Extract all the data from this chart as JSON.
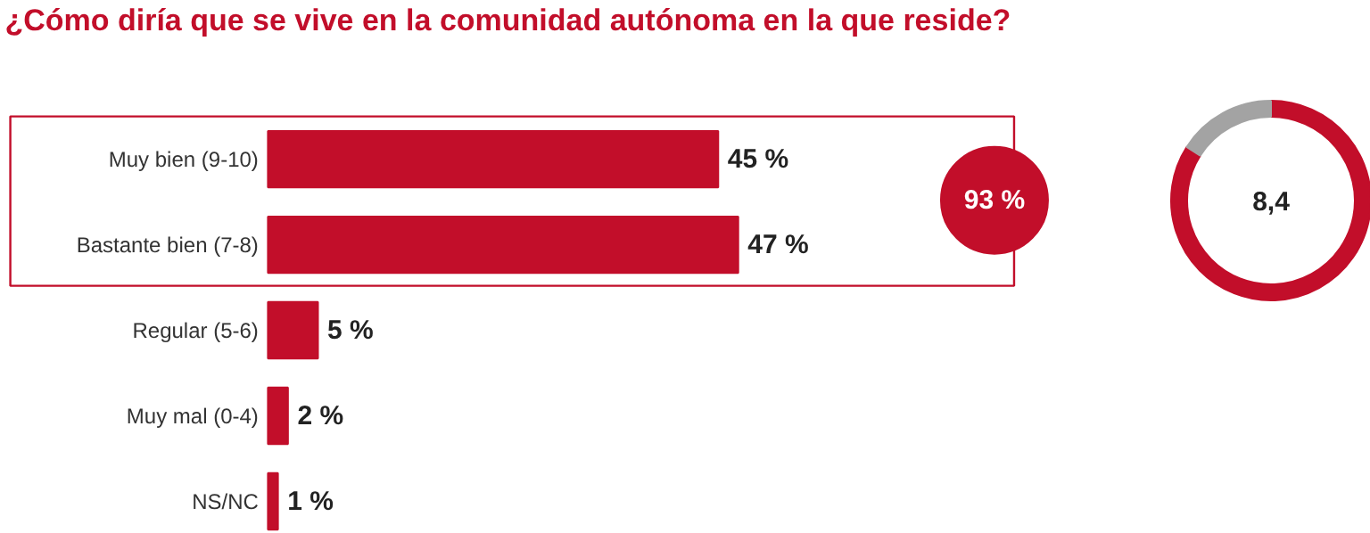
{
  "chart_data": [
    {
      "type": "bar",
      "orientation": "horizontal",
      "title": "¿Cómo diría que se vive en la comunidad autónoma en la que reside?",
      "categories": [
        "Muy bien (9-10)",
        "Bastante bien (7-8)",
        "Regular (5-6)",
        "Muy mal (0-4)",
        "NS/NC"
      ],
      "values": [
        45,
        47,
        5,
        2,
        1
      ],
      "value_labels": [
        "45 %",
        "47 %",
        "5 %",
        "2 %",
        "1 %"
      ],
      "color": "#c20e2a",
      "annotations": [
        "93 %"
      ]
    },
    {
      "type": "donut",
      "categories": [
        null,
        null
      ],
      "values": [
        84,
        16
      ],
      "colors": [
        "#c20e2a",
        "#a3a3a3"
      ],
      "annotations": [
        "8,4"
      ]
    }
  ]
}
